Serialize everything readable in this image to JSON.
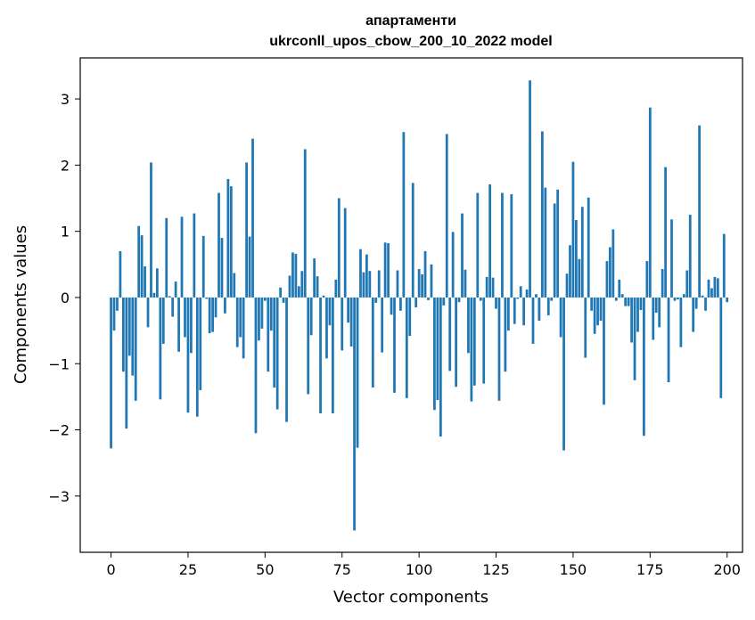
{
  "chart_data": {
    "type": "bar",
    "title": "апартаменти",
    "subtitle": "ukrconll_upos_cbow_200_10_2022 model",
    "xlabel": "Vector components",
    "ylabel": "Components values",
    "xlim": [
      -10,
      205
    ],
    "ylim": [
      -3.85,
      3.62
    ],
    "xticks": [
      0,
      25,
      50,
      75,
      100,
      125,
      150,
      175,
      200
    ],
    "yticks": [
      -3,
      -2,
      -1,
      0,
      1,
      2,
      3
    ],
    "grid": false,
    "bar_color": "#1f77b4",
    "values": [
      -2.28,
      -0.5,
      -0.2,
      0.7,
      -1.12,
      -1.98,
      -0.88,
      -1.18,
      -1.56,
      1.08,
      0.94,
      0.47,
      -0.45,
      2.04,
      0.07,
      0.44,
      -1.54,
      -0.7,
      1.2,
      0.02,
      -0.29,
      0.24,
      -0.82,
      1.22,
      -0.6,
      -1.74,
      -0.84,
      1.27,
      -1.8,
      -1.4,
      0.93,
      -0.02,
      -0.54,
      -0.52,
      -0.3,
      1.58,
      0.9,
      -0.24,
      1.79,
      1.68,
      0.37,
      -0.75,
      -0.6,
      -0.92,
      2.04,
      0.92,
      2.4,
      -2.05,
      -0.65,
      -0.47,
      -0.05,
      -1.12,
      -0.5,
      -1.36,
      -1.69,
      0.15,
      -0.08,
      -1.88,
      0.33,
      0.68,
      0.66,
      0.17,
      0.4,
      2.24,
      -1.46,
      -0.57,
      0.59,
      0.32,
      -1.75,
      0.03,
      -0.92,
      -0.42,
      -1.75,
      0.27,
      1.5,
      -0.8,
      1.35,
      -0.38,
      -0.74,
      -3.52,
      -2.27,
      0.73,
      0.38,
      0.65,
      0.4,
      -1.36,
      -0.08,
      0.41,
      -0.83,
      0.83,
      0.82,
      -0.26,
      -1.44,
      0.41,
      -0.2,
      2.5,
      -1.52,
      -0.58,
      1.73,
      -0.15,
      0.43,
      0.35,
      0.7,
      -0.04,
      0.5,
      -1.7,
      -1.55,
      -2.1,
      -0.12,
      2.47,
      -1.11,
      0.99,
      -1.35,
      -0.07,
      1.27,
      0.42,
      -0.84,
      -1.57,
      -1.33,
      1.58,
      -0.05,
      -1.3,
      0.31,
      1.71,
      0.3,
      -0.17,
      -1.56,
      1.58,
      -1.12,
      -0.5,
      1.56,
      -0.4,
      -0.02,
      0.17,
      -0.42,
      0.12,
      3.28,
      -0.7,
      0.05,
      -0.35,
      2.51,
      1.66,
      -0.27,
      -0.05,
      1.42,
      1.63,
      -0.6,
      -2.31,
      0.36,
      0.79,
      2.05,
      1.17,
      0.58,
      1.37,
      -0.91,
      1.51,
      -0.2,
      -0.55,
      -0.42,
      -0.35,
      -1.62,
      0.55,
      0.76,
      1.03,
      -0.05,
      0.27,
      0.05,
      -0.13,
      -0.13,
      -0.68,
      -1.25,
      -0.52,
      -0.19,
      -2.09,
      0.55,
      2.87,
      -0.64,
      -0.23,
      -0.45,
      0.43,
      1.97,
      -1.28,
      1.18,
      -0.05,
      -0.03,
      -0.75,
      0.05,
      0.41,
      1.25,
      -0.52,
      -0.17,
      2.6,
      0.03,
      -0.2,
      0.27,
      0.14,
      0.31,
      0.29,
      -1.52,
      0.96,
      -0.07
    ]
  }
}
